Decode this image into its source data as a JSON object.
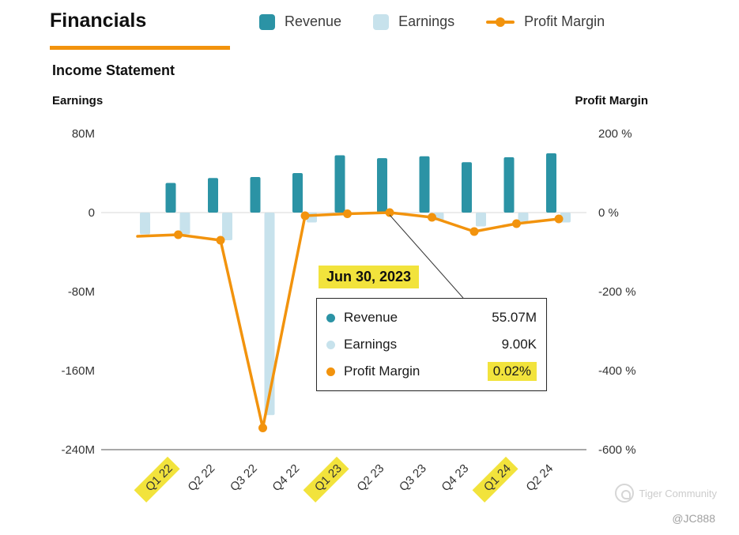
{
  "header": {
    "title": "Financials",
    "subtitle": "Income Statement"
  },
  "legend": [
    {
      "label": "Revenue",
      "color": "#2b93a5",
      "icon": "square"
    },
    {
      "label": "Earnings",
      "color": "#c7e2ec",
      "icon": "square"
    },
    {
      "label": "Profit Margin",
      "color": "#f2930d",
      "icon": "line-dot"
    }
  ],
  "axes": {
    "left_title": "Earnings",
    "right_title": "Profit Margin",
    "left_ticks": [
      "80M",
      "0",
      "-80M",
      "-160M",
      "-240M"
    ],
    "right_ticks": [
      "200 %",
      "0 %",
      "-200 %",
      "-400 %",
      "-600 %"
    ]
  },
  "chart_data": {
    "type": "bar",
    "subtype": "combo bar+line, dual axis",
    "categories": [
      "Q1 22",
      "Q2 22",
      "Q3 22",
      "Q4 22",
      "Q1 23",
      "Q2 23",
      "Q3 23",
      "Q4 23",
      "Q1 24",
      "Q2 24"
    ],
    "highlighted_categories": [
      "Q1 22",
      "Q1 23",
      "Q1 24"
    ],
    "series": [
      {
        "name": "Revenue",
        "type": "bar",
        "axis": "left",
        "unit": "M",
        "color": "#2b93a5",
        "values": [
          30,
          35,
          36,
          40,
          58,
          55.07,
          57,
          51,
          56,
          60
        ]
      },
      {
        "name": "Earnings",
        "type": "bar",
        "axis": "left",
        "unit": "M",
        "color": "#c7e2ec",
        "values": [
          -22,
          -28,
          -205,
          -10,
          -1,
          0.009,
          -8,
          -14,
          -9,
          -10
        ]
      },
      {
        "name": "Profit Margin",
        "type": "line",
        "axis": "right",
        "unit": "%",
        "color": "#f2930d",
        "values": [
          -56,
          -70,
          -545,
          -8,
          -3,
          0.02,
          -12,
          -48,
          -28,
          -16
        ]
      }
    ],
    "edge_partial_point": {
      "earnings": -22,
      "margin": -60
    },
    "left_axis": {
      "min": -240,
      "max": 80,
      "unit": "M"
    },
    "right_axis": {
      "min": -600,
      "max": 200,
      "unit": "%"
    },
    "grid": "zero line and bottom baseline only",
    "legend_position": "top"
  },
  "tooltip": {
    "date": "Jun 30, 2023",
    "rows": [
      {
        "label": "Revenue",
        "value": "55.07M",
        "highlight": false
      },
      {
        "label": "Earnings",
        "value": "9.00K",
        "highlight": false
      },
      {
        "label": "Profit Margin",
        "value": "0.02%",
        "highlight": true
      }
    ]
  },
  "watermark": {
    "brand": "Tiger Community",
    "user": "@JC888"
  },
  "colors": {
    "teal": "#2b93a5",
    "light_blue": "#c7e2ec",
    "orange": "#f2930d",
    "highlight_yellow": "#f2e33c",
    "tick_text": "#333333"
  }
}
